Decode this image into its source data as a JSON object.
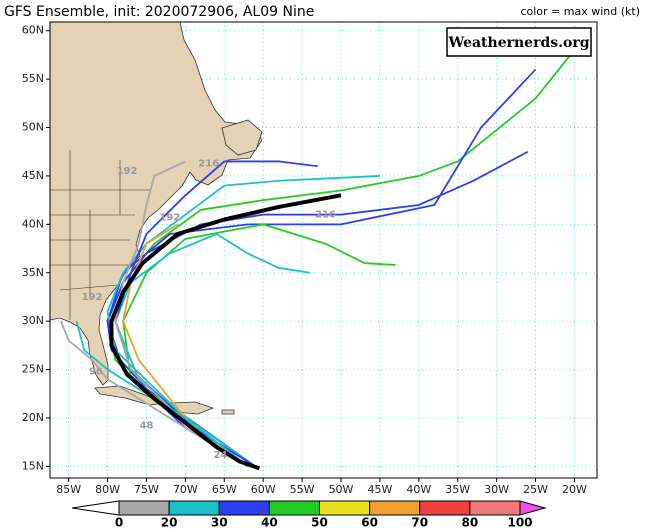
{
  "chart_data": {
    "type": "track-map",
    "title": "GFS Ensemble, init: 2020072906, AL09 Nine",
    "subtitle": "color = max wind (kt)",
    "watermark": "Weathernerds.org",
    "xlim": [
      -87.4,
      -17.1
    ],
    "ylim": [
      13.8,
      60.9
    ],
    "xticks": [
      {
        "value": -85,
        "label": "85W"
      },
      {
        "value": -80,
        "label": "80W"
      },
      {
        "value": -75,
        "label": "75W"
      },
      {
        "value": -70,
        "label": "70W"
      },
      {
        "value": -65,
        "label": "65W"
      },
      {
        "value": -60,
        "label": "60W"
      },
      {
        "value": -55,
        "label": "55W"
      },
      {
        "value": -50,
        "label": "50W"
      },
      {
        "value": -45,
        "label": "45W"
      },
      {
        "value": -40,
        "label": "40W"
      },
      {
        "value": -35,
        "label": "35W"
      },
      {
        "value": -30,
        "label": "30W"
      },
      {
        "value": -25,
        "label": "25W"
      },
      {
        "value": -20,
        "label": "20W"
      }
    ],
    "yticks": [
      {
        "value": 15,
        "label": "15N"
      },
      {
        "value": 20,
        "label": "20N"
      },
      {
        "value": 25,
        "label": "25N"
      },
      {
        "value": 30,
        "label": "30N"
      },
      {
        "value": 35,
        "label": "35N"
      },
      {
        "value": 40,
        "label": "40N"
      },
      {
        "value": 45,
        "label": "45N"
      },
      {
        "value": 50,
        "label": "50N"
      },
      {
        "value": 55,
        "label": "55N"
      },
      {
        "value": 60,
        "label": "60N"
      }
    ],
    "grid": true,
    "colorbar": {
      "levels": [
        0,
        20,
        30,
        40,
        50,
        60,
        70,
        80,
        100
      ],
      "under_color": "#ffffff",
      "colors": [
        "#a8a8a8",
        "#19c2c8",
        "#2c3ff0",
        "#22cc22",
        "#e8e020",
        "#f0a030",
        "#f04040",
        "#f07878"
      ],
      "over_color": "#f050e8"
    },
    "series": [
      {
        "color": "#22cc22",
        "lon": [
          -61,
          -67,
          -74,
          -79,
          -80,
          -78,
          -74,
          -68,
          -60,
          -50,
          -40,
          -35,
          -25,
          -20
        ],
        "lat": [
          15,
          18,
          22,
          26,
          30,
          34,
          38,
          41.5,
          42.5,
          43.5,
          45,
          46.5,
          53,
          58
        ]
      },
      {
        "color": "#2c3ff0",
        "lon": [
          -61,
          -68,
          -75,
          -79.5,
          -80,
          -78,
          -75,
          -68,
          -60,
          -50,
          -40,
          -33,
          -26
        ],
        "lat": [
          15,
          19,
          23,
          27,
          30,
          34,
          37,
          40,
          41,
          41,
          42,
          44.5,
          47.5
        ]
      },
      {
        "color": "#2c3ff0",
        "lon": [
          -62,
          -70,
          -78,
          -80,
          -78,
          -72,
          -62,
          -50,
          -38,
          -32,
          -25
        ],
        "lat": [
          15,
          19,
          25,
          30,
          35,
          39,
          40,
          40,
          42,
          50,
          56
        ]
      },
      {
        "color": "#22cc22",
        "lon": [
          -62,
          -70,
          -77,
          -78,
          -75,
          -70,
          -60,
          -52,
          -47,
          -43
        ],
        "lat": [
          15,
          20,
          24,
          30,
          35,
          38.5,
          40,
          38,
          36,
          35.8
        ]
      },
      {
        "color": "#19c2c8",
        "lon": [
          -61,
          -69,
          -76,
          -79,
          -77,
          -72,
          -66,
          -62,
          -58,
          -54
        ],
        "lat": [
          15,
          19.5,
          24,
          30,
          34,
          37,
          39,
          37,
          35.5,
          35
        ]
      },
      {
        "color": "#19c2c8",
        "lon": [
          -62,
          -70,
          -79,
          -80,
          -78,
          -75,
          -70,
          -65,
          -58,
          -45
        ],
        "lat": [
          15,
          20,
          27,
          31,
          35,
          38,
          41,
          44,
          44.5,
          45
        ]
      },
      {
        "color": "#2c3ff0",
        "lon": [
          -61,
          -69,
          -77,
          -79,
          -77,
          -75,
          -70,
          -65,
          -58,
          -53
        ],
        "lat": [
          15,
          19,
          25,
          30,
          35,
          39,
          43,
          46.5,
          46.5,
          46
        ]
      },
      {
        "color": "#a8a8a8",
        "lon": [
          -62,
          -70,
          -77,
          -79,
          -78,
          -76,
          -75,
          -74,
          -70
        ],
        "lat": [
          15,
          19.5,
          25,
          30,
          34,
          38,
          42,
          45,
          46.5
        ]
      },
      {
        "color": "#f0a030",
        "lon": [
          -62,
          -70,
          -76,
          -78,
          -77,
          -75,
          -71
        ],
        "lat": [
          15,
          20,
          26,
          30,
          34,
          38,
          40
        ]
      },
      {
        "color": "#19c2c8",
        "lon": [
          -62,
          -70,
          -76,
          -80,
          -83,
          -84
        ],
        "lat": [
          15,
          20,
          23,
          25,
          27,
          30
        ]
      },
      {
        "color": "#a8a8a8",
        "lon": [
          -63,
          -72,
          -80,
          -82,
          -85,
          -86
        ],
        "lat": [
          15.5,
          20,
          24,
          26,
          28,
          30
        ]
      },
      {
        "color": "#000000",
        "lon": [
          -60.5,
          -63,
          -66,
          -70,
          -74,
          -77.5,
          -79.5,
          -79.5,
          -78,
          -75.5,
          -71,
          -65,
          -58,
          -50
        ],
        "lat": [
          14.8,
          15.5,
          17,
          19.5,
          22,
          24.5,
          27.5,
          30,
          33,
          36,
          39,
          40.5,
          41.8,
          43
        ]
      }
    ],
    "annotations": [
      {
        "text": "216",
        "lon": -67,
        "lat": 46.3
      },
      {
        "text": "192",
        "lon": -77.5,
        "lat": 45.5
      },
      {
        "text": "192",
        "lon": -72,
        "lat": 40.7
      },
      {
        "text": "216",
        "lon": -52,
        "lat": 41
      },
      {
        "text": "192",
        "lon": -82,
        "lat": 32.5
      },
      {
        "text": "96",
        "lon": -81.5,
        "lat": 24.8
      },
      {
        "text": "48",
        "lon": -75,
        "lat": 19.2
      },
      {
        "text": "24",
        "lon": -65.5,
        "lat": 16.2
      }
    ]
  }
}
